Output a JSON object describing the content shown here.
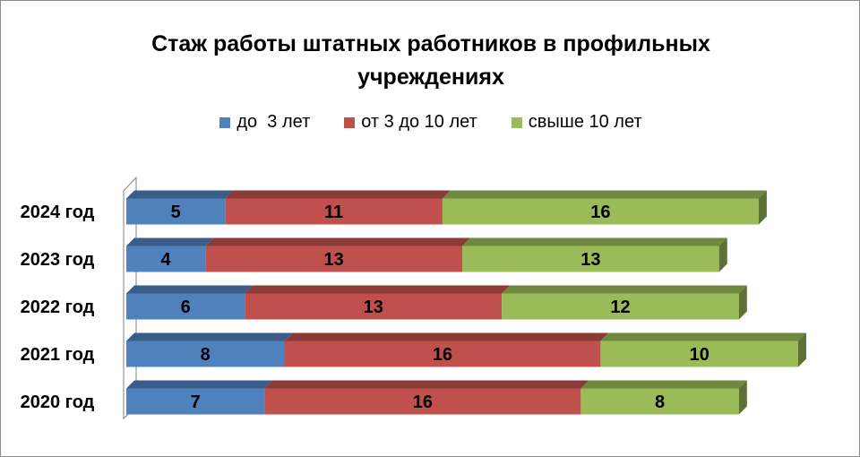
{
  "chart_data": {
    "type": "bar",
    "orientation": "horizontal",
    "stacked": true,
    "style": "3d",
    "title_lines": [
      "Стаж работы штатных работников в профильных",
      "учреждениях"
    ],
    "categories": [
      "2024 год",
      "2023 год",
      "2022 год",
      "2021 год",
      "2020 год"
    ],
    "series": [
      {
        "name": "до  3 лет",
        "color": "#4f81bd",
        "values": [
          5,
          4,
          6,
          8,
          7
        ]
      },
      {
        "name": "от 3 до 10 лет",
        "color": "#c0504d",
        "values": [
          11,
          13,
          13,
          16,
          16
        ]
      },
      {
        "name": "свыше 10 лет",
        "color": "#9bbb59",
        "values": [
          16,
          13,
          12,
          10,
          8
        ]
      }
    ],
    "show_data_labels": true,
    "xlim": [
      0,
      34
    ],
    "x_axis_visible": false,
    "grid": false,
    "legend_position": "top"
  }
}
